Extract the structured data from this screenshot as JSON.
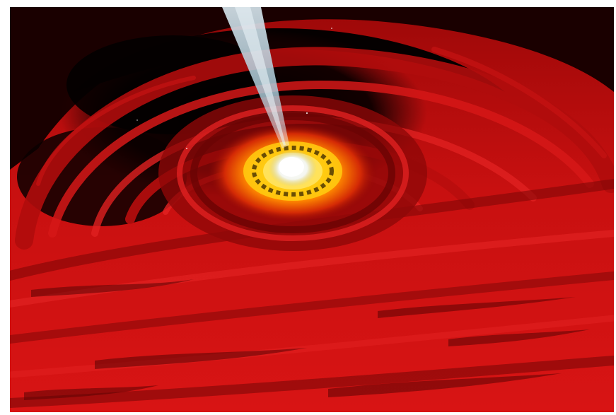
{
  "image": {
    "subject": "black-hole-accretion-disk-illustration",
    "colors": {
      "disk_red": "#c40f0f",
      "disk_dark_red": "#7a0606",
      "void_black": "#070000",
      "inner_orange": "#ff8a00",
      "inner_yellow": "#ffd21a",
      "core_white": "#ffffff",
      "jet_blue": "#b7d3e0",
      "frame_white": "#ffffff"
    }
  }
}
